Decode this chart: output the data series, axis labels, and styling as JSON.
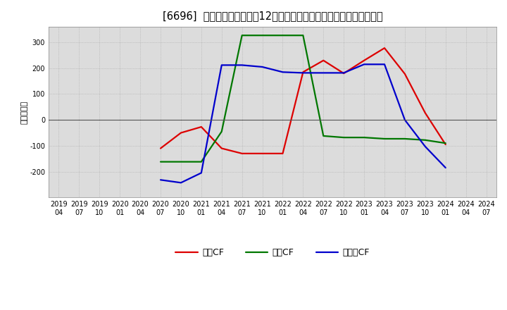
{
  "title": "[6696]  キャッシュフローの12か月移動合計の対前年同期増減額の推移",
  "ylabel": "（百万円）",
  "background_color": "#ffffff",
  "plot_bg_color": "#dcdcdc",
  "title_fontsize": 10.5,
  "ylabel_fontsize": 8,
  "legend_fontsize": 9,
  "tick_fontsize": 7,
  "x_labels": [
    "2019/04",
    "2019/07",
    "2019/10",
    "2020/01",
    "2020/04",
    "2020/07",
    "2020/10",
    "2021/01",
    "2021/04",
    "2021/07",
    "2021/10",
    "2022/01",
    "2022/04",
    "2022/07",
    "2022/10",
    "2023/01",
    "2023/04",
    "2023/07",
    "2023/10",
    "2024/01",
    "2024/04",
    "2024/07"
  ],
  "eigyo_x": [
    "2020/07",
    "2020/10",
    "2021/01",
    "2021/04",
    "2021/07",
    "2021/10",
    "2022/01",
    "2022/04",
    "2022/07",
    "2022/10",
    "2023/01",
    "2023/04",
    "2023/07",
    "2023/10",
    "2024/01"
  ],
  "eigyo_y": [
    -110,
    -50,
    -27,
    -110,
    -130,
    -130,
    -130,
    185,
    230,
    180,
    230,
    278,
    178,
    27,
    -95
  ],
  "toshi_x": [
    "2020/07",
    "2020/10",
    "2021/01",
    "2021/04",
    "2021/07",
    "2021/10",
    "2022/01",
    "2022/04",
    "2022/07",
    "2022/10",
    "2023/01",
    "2023/04",
    "2023/07",
    "2023/10",
    "2024/01"
  ],
  "toshi_y": [
    -162,
    -162,
    -162,
    -45,
    327,
    327,
    327,
    327,
    -62,
    -68,
    -68,
    -73,
    -73,
    -78,
    -90
  ],
  "free_x": [
    "2020/07",
    "2020/10",
    "2021/01",
    "2021/04",
    "2021/07",
    "2021/10",
    "2022/01",
    "2022/04",
    "2022/07",
    "2022/10",
    "2023/01",
    "2023/04",
    "2023/07",
    "2023/10",
    "2024/01"
  ],
  "free_y": [
    -232,
    -243,
    -205,
    212,
    212,
    205,
    185,
    182,
    182,
    182,
    215,
    215,
    0,
    -103,
    -185
  ],
  "eigyo_label": "営業CF",
  "toshi_label": "投資CF",
  "free_label": "フリーCF",
  "line_colors": {
    "eigyo": "#dd0000",
    "toshi": "#007700",
    "free": "#0000cc"
  },
  "ylim": [
    -300,
    360
  ],
  "yticks": [
    -200,
    -100,
    0,
    100,
    200,
    300
  ],
  "line_width": 1.6
}
